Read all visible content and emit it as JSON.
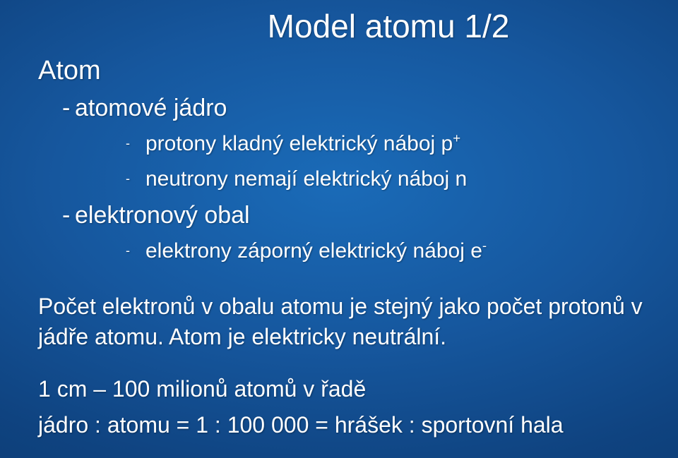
{
  "title": "Model atomu 1/2",
  "bullets": {
    "atom_heading": "Atom",
    "l2_jadro": "atomové jádro",
    "l3_protony_pre": "protony kladný elektrický náboj p",
    "l3_protony_sup": "+",
    "l3_neutrony": "neutrony nemají elektrický náboj n",
    "l2_obal": "elektronový obal",
    "l3_elektrony_pre": "elektrony záporný elektrický náboj e",
    "l3_elektrony_sup": "-"
  },
  "para1": "Počet elektronů v obalu atomu je stejný jako počet protonů v jádře atomu. Atom je elektricky neutrální.",
  "para2": "1 cm – 100 milionů atomů v řadě",
  "para3": "jádro : atomu = 1 : 100 000 = hrášek : sportovní hala",
  "dash": "-",
  "dash_sm": "-",
  "background_color": "#145a9c",
  "text_color": "#ffffff"
}
